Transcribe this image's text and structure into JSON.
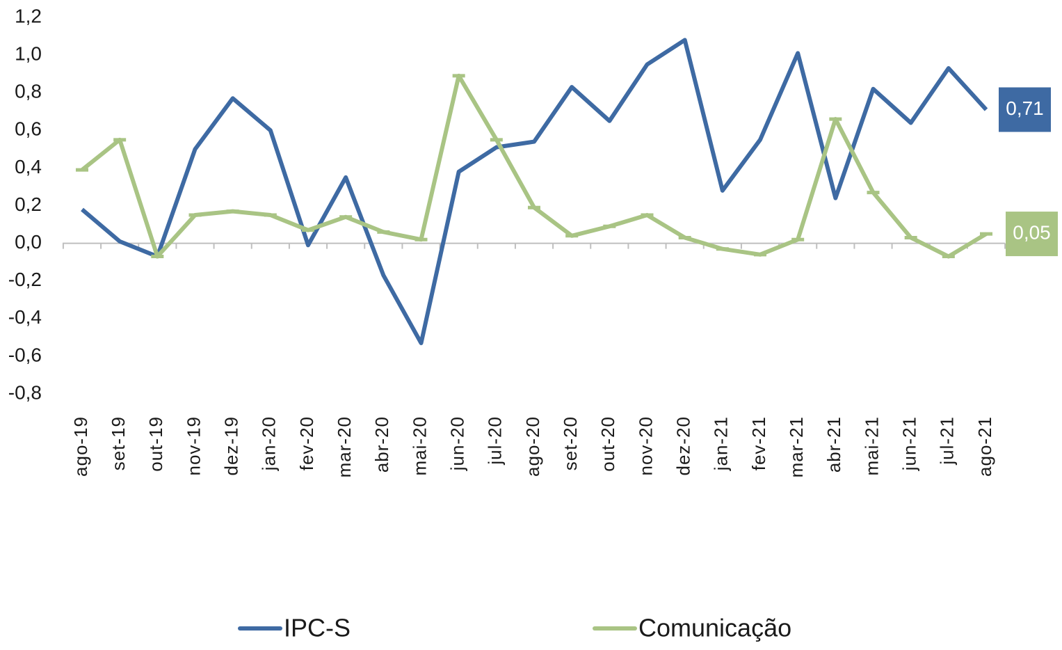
{
  "chart_data": {
    "type": "line",
    "categories": [
      "ago-19",
      "set-19",
      "out-19",
      "nov-19",
      "dez-19",
      "jan-20",
      "fev-20",
      "mar-20",
      "abr-20",
      "mai-20",
      "jun-20",
      "jul-20",
      "ago-20",
      "set-20",
      "out-20",
      "nov-20",
      "dez-20",
      "jan-21",
      "fev-21",
      "mar-21",
      "abr-21",
      "mai-21",
      "jun-21",
      "jul-21",
      "ago-21"
    ],
    "series": [
      {
        "name": "IPC-S",
        "color": "#3e6aa3",
        "values": [
          0.18,
          0.01,
          -0.07,
          0.5,
          0.77,
          0.6,
          -0.01,
          0.35,
          -0.17,
          -0.53,
          0.38,
          0.51,
          0.54,
          0.83,
          0.65,
          0.95,
          1.08,
          0.28,
          0.55,
          1.01,
          0.24,
          0.82,
          0.64,
          0.93,
          0.71
        ],
        "value_labels": [
          null,
          null,
          null,
          null,
          null,
          null,
          null,
          null,
          null,
          null,
          null,
          null,
          null,
          null,
          null,
          null,
          null,
          null,
          null,
          null,
          null,
          null,
          null,
          null,
          "0,71"
        ]
      },
      {
        "name": "Comunicação",
        "color": "#a9c484",
        "marker": "dash",
        "values": [
          0.39,
          0.55,
          -0.07,
          0.15,
          0.17,
          0.15,
          0.07,
          0.14,
          0.06,
          0.02,
          0.89,
          0.55,
          0.19,
          0.04,
          0.09,
          0.15,
          0.03,
          -0.03,
          -0.06,
          0.02,
          0.66,
          0.27,
          0.03,
          -0.07,
          0.05
        ],
        "value_labels": [
          null,
          null,
          null,
          null,
          null,
          null,
          null,
          null,
          null,
          null,
          null,
          null,
          null,
          null,
          null,
          null,
          null,
          null,
          null,
          null,
          null,
          null,
          null,
          null,
          "0,05"
        ]
      }
    ],
    "ylim": [
      -0.8,
      1.2
    ],
    "yticks": [
      {
        "value": -0.8,
        "label": "-0,8"
      },
      {
        "value": -0.6,
        "label": "-0,6"
      },
      {
        "value": -0.4,
        "label": "-0,4"
      },
      {
        "value": -0.2,
        "label": "-0,2"
      },
      {
        "value": 0,
        "label": "0,0"
      },
      {
        "value": 0.2,
        "label": "0,2"
      },
      {
        "value": 0.4,
        "label": "0,4"
      },
      {
        "value": 0.6,
        "label": "0,6"
      },
      {
        "value": 0.8,
        "label": "0,8"
      },
      {
        "value": 1.0,
        "label": "1,0"
      },
      {
        "value": 1.2,
        "label": "1,2"
      }
    ],
    "grid": false,
    "legend": "bottom"
  }
}
